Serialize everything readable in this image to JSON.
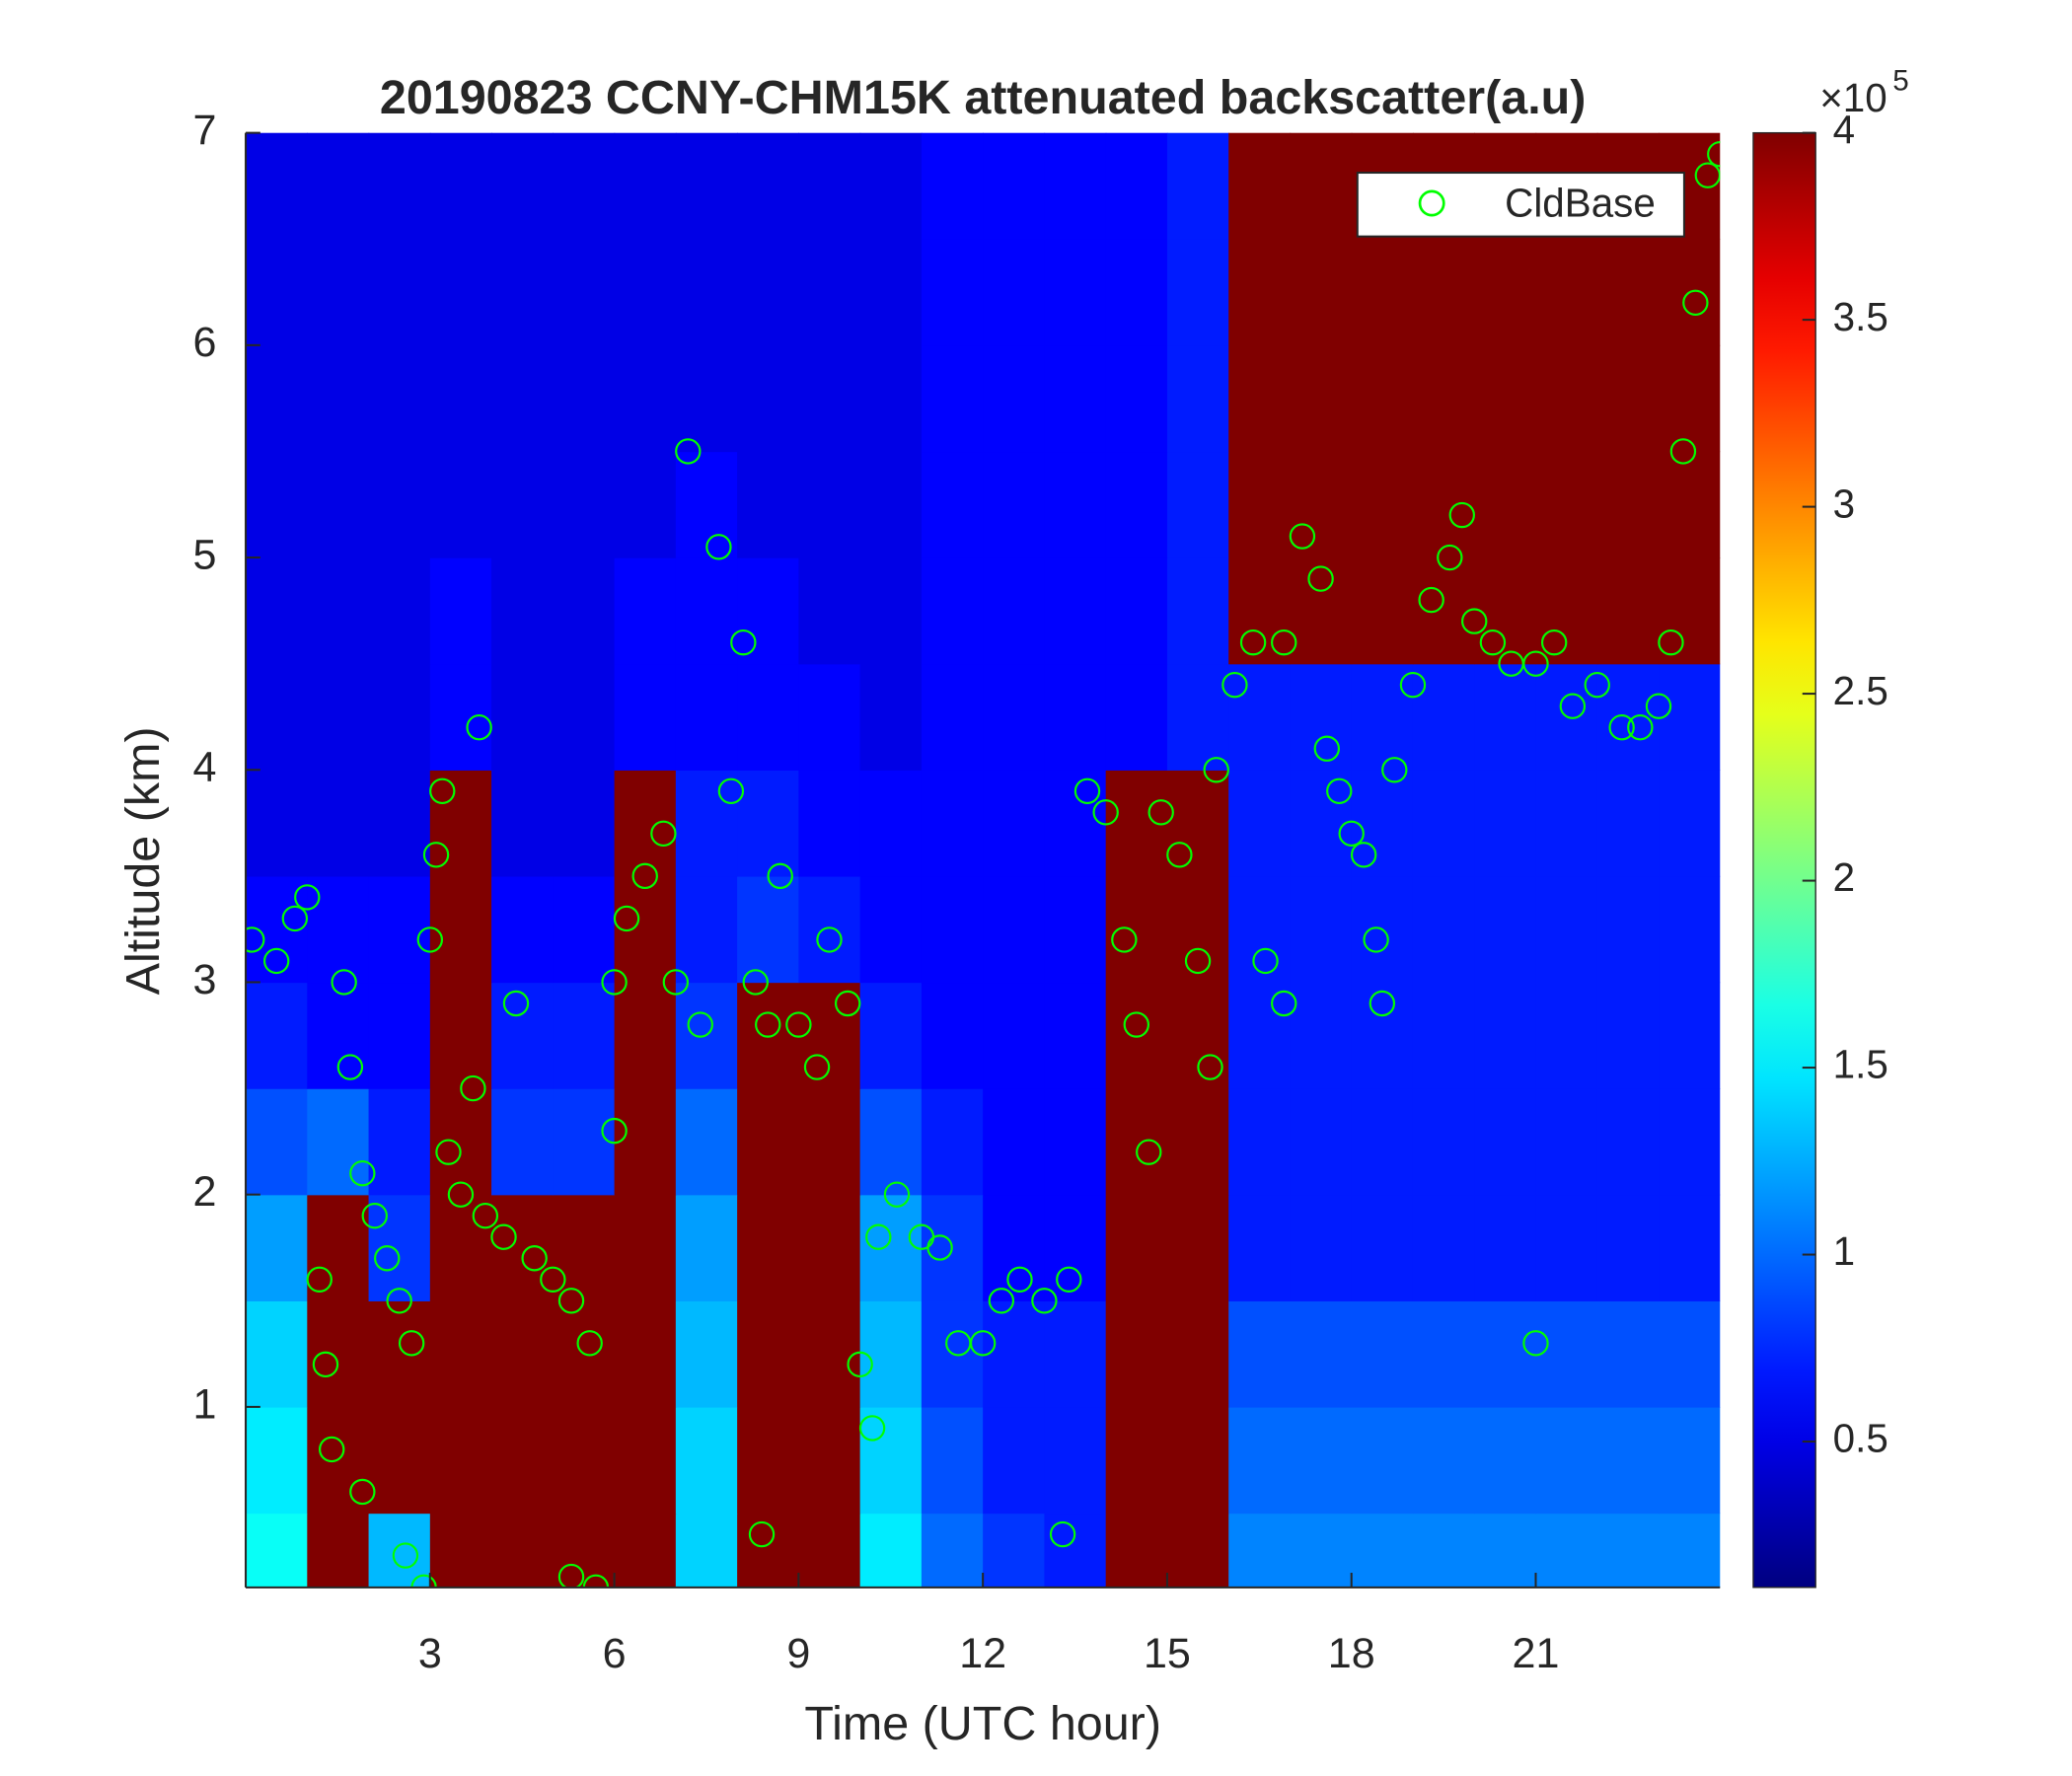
{
  "chart_data": {
    "type": "heatmap",
    "title": "20190823 CCNY-CHM15K attenuated backscatter(a.u)",
    "x_label": "Time (UTC hour)",
    "y_label": "Altitude (km)",
    "xlim": [
      0,
      24
    ],
    "ylim": [
      0.15,
      7
    ],
    "xticks": [
      3,
      6,
      9,
      12,
      15,
      18,
      21
    ],
    "yticks": [
      1,
      2,
      3,
      4,
      5,
      6,
      7
    ],
    "heatmap": {
      "colormap": "jet",
      "clim": [
        0.11,
        4
      ],
      "time_bins": [
        0,
        1,
        2,
        3,
        4,
        5,
        6,
        7,
        8,
        9,
        10,
        11,
        12,
        13,
        14,
        15,
        16,
        17,
        18,
        19,
        20,
        21,
        22,
        23,
        24
      ],
      "altitude_bins": [
        0,
        0.5,
        1,
        1.5,
        2,
        2.5,
        3,
        3.5,
        4,
        4.5,
        5,
        5.5,
        6,
        6.5,
        7
      ],
      "values": [
        [
          1.6,
          4,
          1.3,
          4,
          4,
          4,
          4,
          1.4,
          4,
          4,
          1.5,
          1.0,
          0.8,
          0.7,
          4,
          4,
          1.1,
          1.1,
          1.1,
          1.1,
          1.1,
          1.1,
          1.1,
          1.1
        ],
        [
          1.5,
          4,
          4,
          4,
          4,
          4,
          4,
          1.4,
          4,
          4,
          1.4,
          0.9,
          0.7,
          0.7,
          4,
          4,
          1.0,
          1.0,
          1.0,
          1.0,
          1.0,
          1.0,
          1.0,
          1.0
        ],
        [
          1.4,
          4,
          4,
          4,
          4,
          4,
          4,
          1.3,
          4,
          4,
          1.3,
          0.8,
          0.7,
          0.7,
          4,
          4,
          0.9,
          0.9,
          0.9,
          0.9,
          0.9,
          0.9,
          0.9,
          0.9
        ],
        [
          1.2,
          4,
          0.8,
          4,
          4,
          4,
          4,
          1.2,
          4,
          4,
          1.2,
          0.8,
          0.6,
          0.6,
          4,
          4,
          0.7,
          0.7,
          0.7,
          0.7,
          0.7,
          0.7,
          0.7,
          0.7
        ],
        [
          0.9,
          1.0,
          0.7,
          4,
          0.8,
          0.8,
          4,
          1.0,
          4,
          4,
          0.9,
          0.7,
          0.6,
          0.6,
          4,
          4,
          0.7,
          0.7,
          0.7,
          0.7,
          0.7,
          0.7,
          0.7,
          0.7
        ],
        [
          0.7,
          0.6,
          0.6,
          4,
          0.7,
          0.7,
          4,
          0.8,
          4,
          4,
          0.7,
          0.6,
          0.6,
          0.6,
          4,
          4,
          0.7,
          0.7,
          0.7,
          0.7,
          0.7,
          0.7,
          0.7,
          0.7
        ],
        [
          0.6,
          0.6,
          0.6,
          4,
          0.6,
          0.6,
          4,
          0.7,
          0.8,
          0.7,
          0.6,
          0.6,
          0.6,
          0.6,
          4,
          4,
          0.7,
          0.7,
          0.7,
          0.7,
          0.7,
          0.7,
          0.7,
          0.7
        ],
        [
          0.5,
          0.5,
          0.5,
          4,
          0.5,
          0.5,
          4,
          0.7,
          0.7,
          0.6,
          0.6,
          0.6,
          0.6,
          0.6,
          4,
          4,
          0.7,
          0.7,
          0.7,
          0.7,
          0.7,
          0.7,
          0.7,
          0.7
        ],
        [
          0.5,
          0.5,
          0.5,
          0.6,
          0.5,
          0.5,
          0.6,
          0.6,
          0.6,
          0.6,
          0.5,
          0.6,
          0.6,
          0.6,
          0.6,
          0.7,
          0.7,
          0.7,
          0.7,
          0.7,
          0.7,
          0.7,
          0.7,
          0.7
        ],
        [
          0.5,
          0.5,
          0.5,
          0.6,
          0.5,
          0.5,
          0.6,
          0.6,
          0.6,
          0.5,
          0.5,
          0.6,
          0.6,
          0.6,
          0.6,
          0.7,
          4,
          4,
          4,
          4,
          4,
          4,
          4,
          4
        ],
        [
          0.5,
          0.5,
          0.5,
          0.5,
          0.5,
          0.5,
          0.5,
          0.6,
          0.5,
          0.5,
          0.5,
          0.6,
          0.6,
          0.6,
          0.6,
          0.7,
          4,
          4,
          4,
          4,
          4,
          4,
          4,
          4
        ],
        [
          0.5,
          0.5,
          0.5,
          0.5,
          0.5,
          0.5,
          0.5,
          0.5,
          0.5,
          0.5,
          0.5,
          0.6,
          0.6,
          0.6,
          0.6,
          0.7,
          4,
          4,
          4,
          4,
          4,
          4,
          4,
          4
        ],
        [
          0.5,
          0.5,
          0.5,
          0.5,
          0.5,
          0.5,
          0.5,
          0.5,
          0.5,
          0.5,
          0.5,
          0.6,
          0.6,
          0.6,
          0.6,
          0.7,
          4,
          4,
          4,
          4,
          4,
          4,
          4,
          4
        ],
        [
          0.5,
          0.5,
          0.5,
          0.5,
          0.5,
          0.5,
          0.5,
          0.5,
          0.5,
          0.5,
          0.5,
          0.6,
          0.6,
          0.6,
          0.6,
          0.7,
          4,
          4,
          4,
          4,
          4,
          4,
          4,
          4
        ]
      ]
    },
    "colorbar_ticks": [
      0.5,
      1,
      1.5,
      2,
      2.5,
      3,
      3.5,
      4
    ],
    "colorbar_exponent_base": "×10",
    "colorbar_exponent": "5",
    "legend": "upper right",
    "series": [
      {
        "name": "CldBase",
        "color": "#00ff00",
        "marker": "open-circle",
        "x": [
          0.1,
          0.5,
          0.8,
          1.0,
          1.2,
          1.3,
          1.4,
          1.6,
          1.7,
          1.9,
          2.1,
          2.3,
          2.5,
          2.7,
          1.9,
          2.6,
          2.9,
          3.0,
          3.1,
          3.2,
          3.3,
          3.5,
          3.7,
          3.8,
          3.9,
          4.2,
          4.4,
          4.7,
          5.0,
          5.3,
          5.6,
          5.3,
          5.7,
          6.0,
          6.0,
          6.2,
          6.5,
          6.8,
          7.0,
          7.2,
          7.4,
          7.7,
          7.9,
          8.1,
          8.3,
          8.5,
          8.7,
          8.4,
          9.0,
          9.3,
          9.5,
          9.8,
          10.0,
          10.2,
          10.3,
          10.6,
          11.0,
          11.3,
          11.6,
          12.0,
          12.3,
          12.6,
          13.0,
          13.4,
          13.3,
          13.7,
          14.0,
          14.3,
          14.5,
          14.7,
          14.9,
          15.2,
          15.5,
          15.7,
          15.8,
          16.1,
          16.4,
          16.6,
          16.9,
          16.9,
          17.2,
          17.5,
          17.6,
          17.8,
          18.0,
          18.2,
          18.4,
          18.5,
          18.7,
          19.0,
          19.3,
          19.6,
          19.8,
          20.0,
          20.3,
          20.6,
          21.0,
          21.0,
          21.3,
          21.6,
          22.0,
          22.4,
          22.7,
          23.0,
          23.2,
          23.4,
          23.6,
          23.8,
          24.0
        ],
        "values": [
          3.2,
          3.1,
          3.3,
          3.4,
          1.6,
          1.2,
          0.8,
          3.0,
          2.6,
          2.1,
          1.9,
          1.7,
          1.5,
          1.3,
          0.6,
          0.3,
          0.15,
          3.2,
          3.6,
          3.9,
          2.2,
          2.0,
          2.5,
          4.2,
          1.9,
          1.8,
          2.9,
          1.7,
          1.6,
          1.5,
          1.3,
          0.2,
          0.15,
          3.0,
          2.3,
          3.3,
          3.5,
          3.7,
          3.0,
          5.5,
          2.8,
          5.05,
          3.9,
          4.6,
          3.0,
          2.8,
          3.5,
          0.4,
          2.8,
          2.6,
          3.2,
          2.9,
          1.2,
          0.9,
          1.8,
          2.0,
          1.8,
          1.75,
          1.3,
          1.3,
          1.5,
          1.6,
          1.5,
          1.6,
          0.4,
          3.9,
          3.8,
          3.2,
          2.8,
          2.2,
          3.8,
          3.6,
          3.1,
          2.6,
          4.0,
          4.4,
          4.6,
          3.1,
          2.9,
          4.6,
          5.1,
          4.9,
          4.1,
          3.9,
          3.7,
          3.6,
          3.2,
          2.9,
          4.0,
          4.4,
          4.8,
          5.0,
          5.2,
          4.7,
          4.6,
          4.5,
          4.5,
          1.3,
          4.6,
          4.3,
          4.4,
          4.2,
          4.2,
          4.3,
          4.6,
          5.5,
          6.2,
          6.8,
          6.9
        ]
      }
    ]
  }
}
